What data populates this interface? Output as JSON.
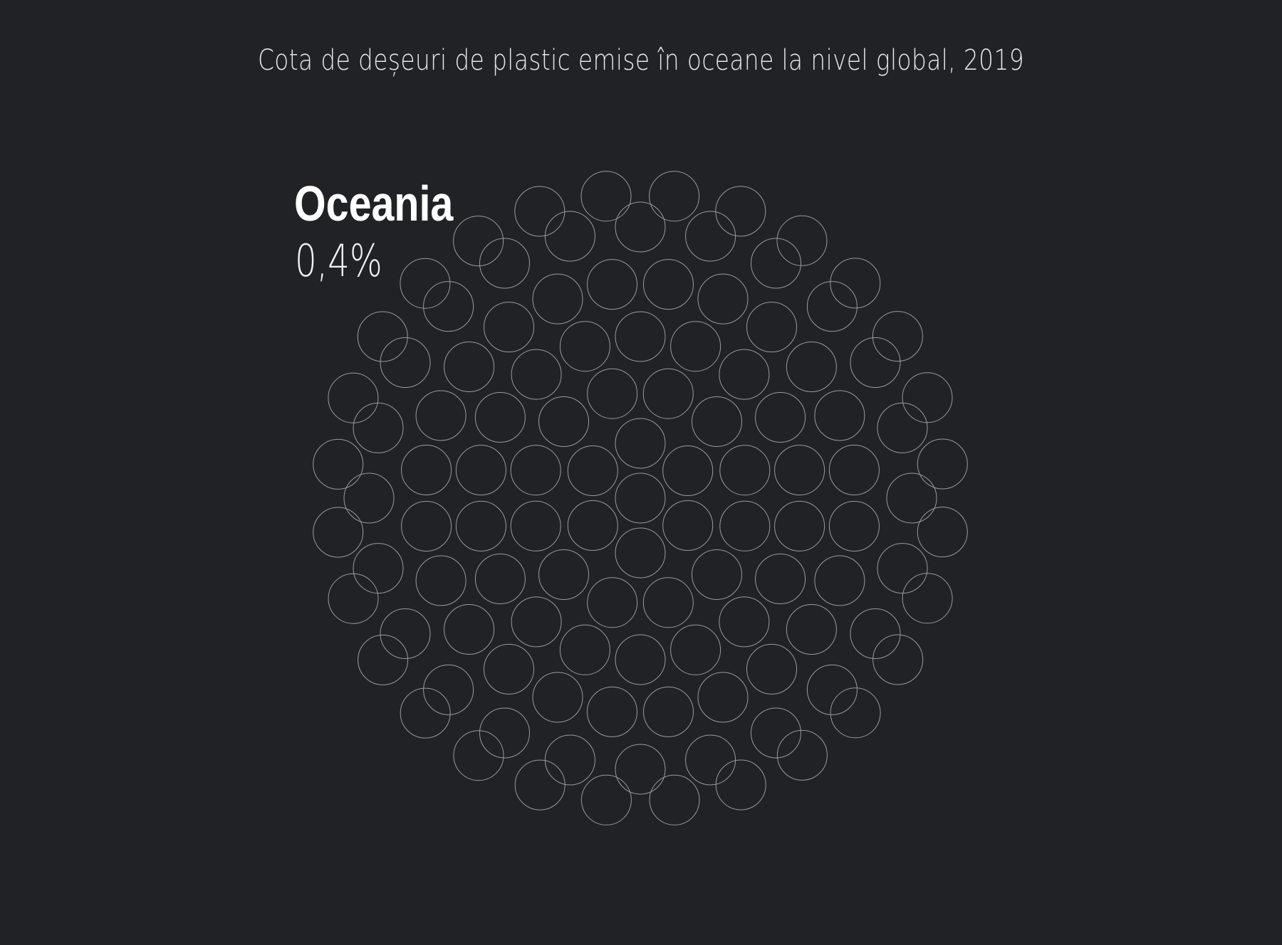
{
  "chart_data": {
    "type": "packed-circles",
    "title": "Cota de deșeuri de plastic emise în oceane la nivel global, 2019",
    "highlight": {
      "region": "Oceania",
      "value_label": "0,4%",
      "value": 0.4
    },
    "circle_count": 113,
    "colors": {
      "background": "#212226",
      "circle_stroke": "#9a9a9e",
      "text": "#ffffff"
    }
  }
}
